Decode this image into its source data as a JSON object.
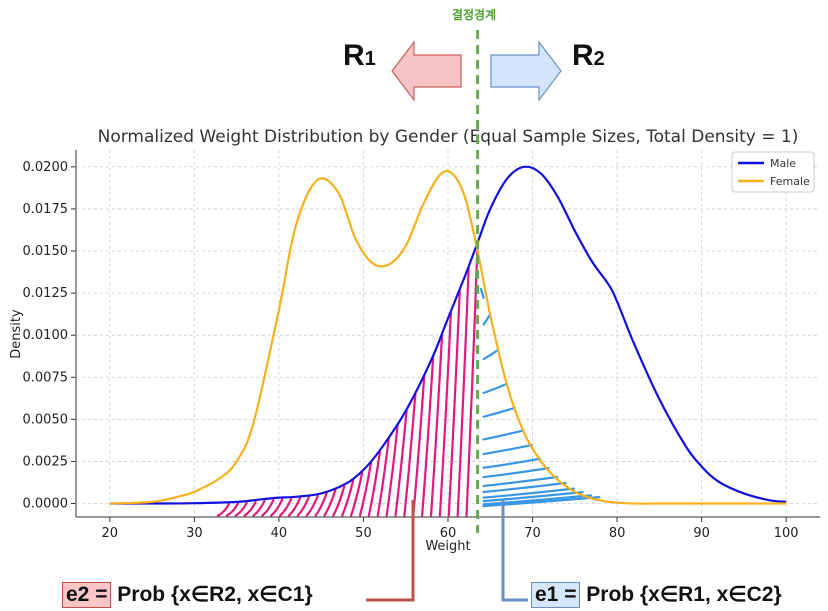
{
  "boundary_label": "결정경계",
  "regions": {
    "r1": {
      "main": "R",
      "sub": "1"
    },
    "r2": {
      "main": "R",
      "sub": "2"
    }
  },
  "chart_data": {
    "type": "line",
    "title": "Normalized Weight Distribution by Gender (Equal Sample Sizes, Total Density = 1)",
    "xlabel": "Weight",
    "ylabel": "Density",
    "xlim": [
      16,
      104
    ],
    "ylim": [
      -0.0008,
      0.021
    ],
    "x_ticks": [
      "20",
      "30",
      "40",
      "50",
      "60",
      "70",
      "80",
      "90",
      "100"
    ],
    "y_ticks": [
      "0.0000",
      "0.0025",
      "0.0050",
      "0.0075",
      "0.0100",
      "0.0125",
      "0.0150",
      "0.0175",
      "0.0200"
    ],
    "grid": true,
    "legend_position": "top-right",
    "decision_boundary_x": 63.5,
    "series": [
      {
        "name": "Male",
        "color": "#1010e0",
        "x": [
          20,
          25,
          30,
          35,
          38,
          40,
          42,
          45,
          48,
          50,
          52,
          55,
          58,
          60,
          62,
          63.5,
          65,
          67,
          69,
          71,
          73,
          75,
          77,
          79,
          80,
          82,
          85,
          88,
          90,
          92,
          95,
          98,
          100
        ],
        "y": [
          0.0,
          0.0,
          2e-05,
          0.0001,
          0.00025,
          0.00035,
          0.0004,
          0.0006,
          0.0012,
          0.002,
          0.0032,
          0.0055,
          0.0085,
          0.011,
          0.0135,
          0.0155,
          0.0175,
          0.0193,
          0.02,
          0.0196,
          0.0182,
          0.0162,
          0.0144,
          0.013,
          0.012,
          0.0095,
          0.0062,
          0.0035,
          0.0022,
          0.0013,
          0.0006,
          0.0002,
          0.0001
        ]
      },
      {
        "name": "Female",
        "color": "#f7b01e",
        "x": [
          20,
          25,
          28,
          30,
          33,
          35,
          37,
          40,
          42,
          44.5,
          47,
          49,
          51,
          53,
          55,
          57,
          59,
          60.5,
          62,
          63.5,
          65,
          67,
          69,
          71,
          73,
          75,
          77,
          79,
          80,
          82,
          85,
          90,
          100
        ],
        "y": [
          0.0,
          0.0001,
          0.0004,
          0.0007,
          0.0015,
          0.0025,
          0.0048,
          0.0115,
          0.0165,
          0.0192,
          0.0185,
          0.0158,
          0.0143,
          0.0142,
          0.0153,
          0.0177,
          0.0195,
          0.0196,
          0.0182,
          0.015,
          0.0112,
          0.007,
          0.0042,
          0.0025,
          0.0014,
          0.0007,
          0.0003,
          0.0001,
          5e-05,
          0.0,
          0.0,
          0.0,
          0.0
        ]
      }
    ],
    "legend": [
      {
        "name": "Male",
        "color": "#1010e0"
      },
      {
        "name": "Female",
        "color": "#f7b01e"
      }
    ]
  },
  "callouts": {
    "e2": {
      "box": "e2 =",
      "text": " Prob {x∈R2, x∈C1}",
      "box_color": "#f7c6c7",
      "line_color": "#c0504d"
    },
    "e1": {
      "box": "e1 =",
      "text": " Prob {x∈R1, x∈C2}",
      "box_color": "#d6e6fb",
      "line_color": "#6d8fbf"
    }
  },
  "hatch_colors": {
    "left": "#e3177f",
    "right": "#3a97e6"
  },
  "arrow_colors": {
    "left_fill": "#f6c4c4",
    "left_stroke": "#c96060",
    "right_fill": "#d3e4fb",
    "right_stroke": "#6b90c6"
  }
}
